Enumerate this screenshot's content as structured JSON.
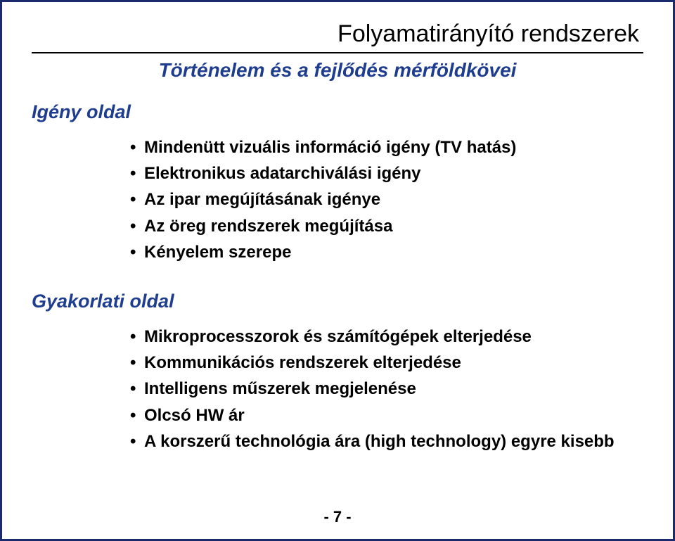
{
  "header": {
    "title": "Folyamatirányító rendszerek",
    "subtitle": "Történelem és a fejlődés mérföldkövei"
  },
  "sections": {
    "igeny": {
      "heading": "Igény oldal",
      "items": [
        "Mindenütt vizuális információ igény (TV hatás)",
        "Elektronikus adatarchiválási igény",
        "Az ipar megújításának igénye",
        "Az öreg rendszerek megújítása",
        "Kényelem szerepe"
      ]
    },
    "gyakorlati": {
      "heading": "Gyakorlati oldal",
      "items": [
        "Mikroprocesszorok és számítógépek elterjedése",
        "Kommunikációs rendszerek elterjedése",
        "Intelligens műszerek megjelenése",
        "Olcsó HW ár",
        "A korszerű technológia ára (high technology) egyre kisebb"
      ]
    }
  },
  "page_number": "- 7 -",
  "colors": {
    "accent": "#1f3d8f",
    "border": "#1a2a6c",
    "text": "#000000",
    "background": "#ffffff"
  }
}
